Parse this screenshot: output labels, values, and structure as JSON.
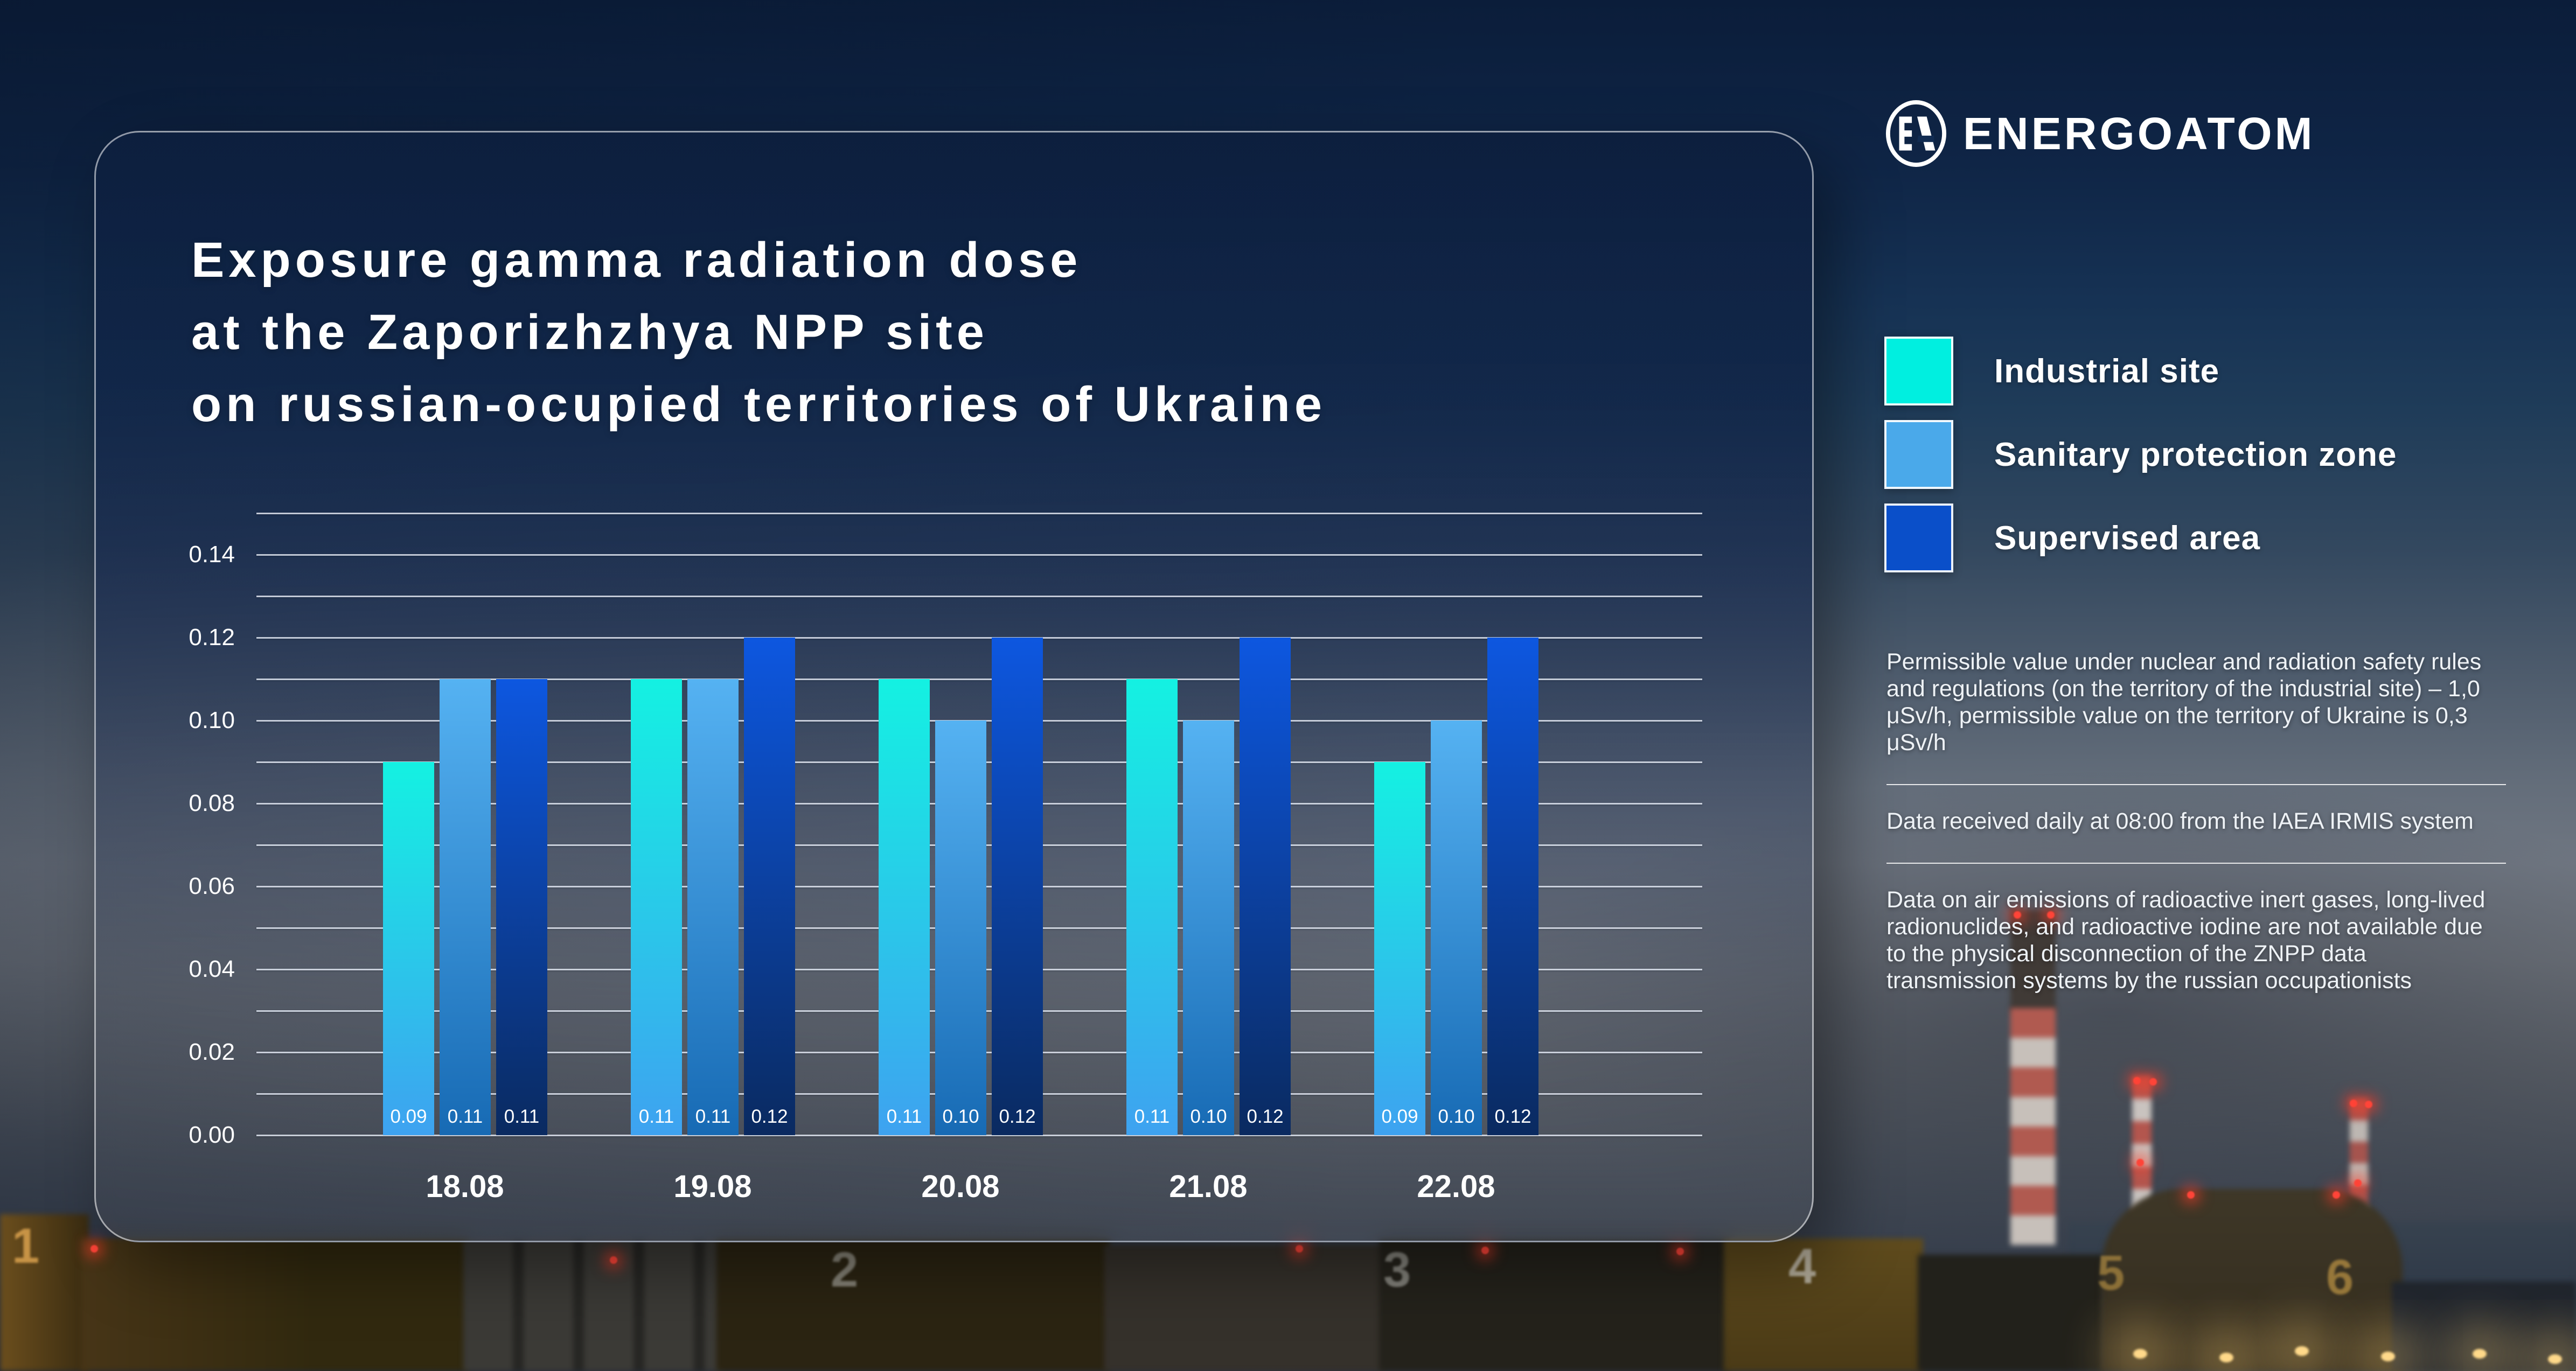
{
  "logo": {
    "brand": "ENERGOATOM"
  },
  "card": {
    "title_lines": [
      "Exposure gamma radiation dose",
      "at the Zaporizhzhya NPP site",
      "on russian-ocupied territories of Ukraine"
    ]
  },
  "legend": {
    "items": [
      {
        "label": "Industrial site",
        "color": "#00efe0"
      },
      {
        "label": "Sanitary protection zone",
        "color": "#4aa9ea"
      },
      {
        "label": "Supervised area",
        "color": "#0a4fc9"
      }
    ]
  },
  "notes": {
    "blocks": [
      "Permissible value under nuclear and radiation safety rules and regulations (on the territory of the industrial site) – 1,0 μSv/h, permissible value on the territory of Ukraine is 0,3 μSv/h",
      "Data received daily at 08:00 from the IAEA IRMIS system",
      "Data on air emissions of radioactive inert gases, long-lived radionuclides, and radioactive iodine are not available due to the physical disconnection of the ZNPP data transmission systems by the russian occupationists"
    ]
  },
  "background": {
    "unit_numbers": [
      "1",
      "2",
      "3",
      "4",
      "5",
      "6"
    ]
  },
  "chart_data": {
    "type": "bar",
    "title": "Exposure gamma radiation dose at the Zaporizhzhya NPP site on russian-ocupied territories of Ukraine",
    "categories": [
      "18.08",
      "19.08",
      "20.08",
      "21.08",
      "22.08"
    ],
    "series": [
      {
        "name": "Industrial site",
        "values": [
          0.09,
          0.11,
          0.11,
          0.11,
          0.09
        ],
        "colors": [
          "#14f1e2",
          "#3ea2f0"
        ]
      },
      {
        "name": "Sanitary protection zone",
        "values": [
          0.11,
          0.11,
          0.1,
          0.1,
          0.1
        ],
        "colors": [
          "#55b2f2",
          "#176ab4"
        ]
      },
      {
        "name": "Supervised area",
        "values": [
          0.11,
          0.12,
          0.12,
          0.12,
          0.12
        ],
        "colors": [
          "#0d57e0",
          "#0a2a60"
        ]
      }
    ],
    "xlabel": "",
    "ylabel": "",
    "ylim": [
      0,
      0.15
    ],
    "yticks": [
      "0.00",
      "0.02",
      "0.04",
      "0.06",
      "0.08",
      "0.10",
      "0.12",
      "0.14"
    ],
    "gridline_step": 0.01,
    "grid": true,
    "legend_position": "right",
    "bar_value_labels": true
  }
}
